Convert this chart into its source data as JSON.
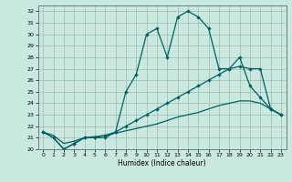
{
  "title": "",
  "xlabel": "Humidex (Indice chaleur)",
  "xlim": [
    -0.5,
    23.5
  ],
  "ylim": [
    20,
    32.5
  ],
  "yticks": [
    20,
    21,
    22,
    23,
    24,
    25,
    26,
    27,
    28,
    29,
    30,
    31,
    32
  ],
  "xticks": [
    0,
    1,
    2,
    3,
    4,
    5,
    6,
    7,
    8,
    9,
    10,
    11,
    12,
    13,
    14,
    15,
    16,
    17,
    18,
    19,
    20,
    21,
    22,
    23
  ],
  "bg_color": "#c8e8e0",
  "grid_color": "#a0b8b0",
  "line_color": "#006060",
  "line1_x": [
    0,
    1,
    2,
    3,
    4,
    5,
    6,
    7,
    8,
    9,
    10,
    11,
    12,
    13,
    14,
    15,
    16,
    17,
    18,
    19,
    20,
    21,
    22,
    23
  ],
  "line1_y": [
    21.5,
    21.0,
    20.0,
    20.5,
    21.0,
    21.0,
    21.0,
    21.5,
    25.0,
    26.5,
    30.0,
    30.5,
    28.0,
    31.5,
    32.0,
    31.5,
    30.5,
    27.0,
    27.0,
    28.0,
    25.5,
    24.5,
    23.5,
    23.0
  ],
  "line2_x": [
    0,
    1,
    2,
    3,
    4,
    5,
    6,
    7,
    8,
    9,
    10,
    11,
    12,
    13,
    14,
    15,
    16,
    17,
    18,
    19,
    20,
    21,
    22,
    23
  ],
  "line2_y": [
    21.5,
    21.0,
    20.0,
    20.5,
    21.0,
    21.0,
    21.2,
    21.5,
    22.0,
    22.5,
    23.0,
    23.5,
    24.0,
    24.5,
    25.0,
    25.5,
    26.0,
    26.5,
    27.0,
    27.2,
    27.0,
    27.0,
    23.5,
    23.0
  ],
  "line3_x": [
    0,
    1,
    2,
    3,
    4,
    5,
    6,
    7,
    8,
    9,
    10,
    11,
    12,
    13,
    14,
    15,
    16,
    17,
    18,
    19,
    20,
    21,
    22,
    23
  ],
  "line3_y": [
    21.5,
    21.2,
    20.5,
    20.7,
    21.0,
    21.1,
    21.2,
    21.4,
    21.6,
    21.8,
    22.0,
    22.2,
    22.5,
    22.8,
    23.0,
    23.2,
    23.5,
    23.8,
    24.0,
    24.2,
    24.2,
    24.0,
    23.5,
    23.0
  ]
}
